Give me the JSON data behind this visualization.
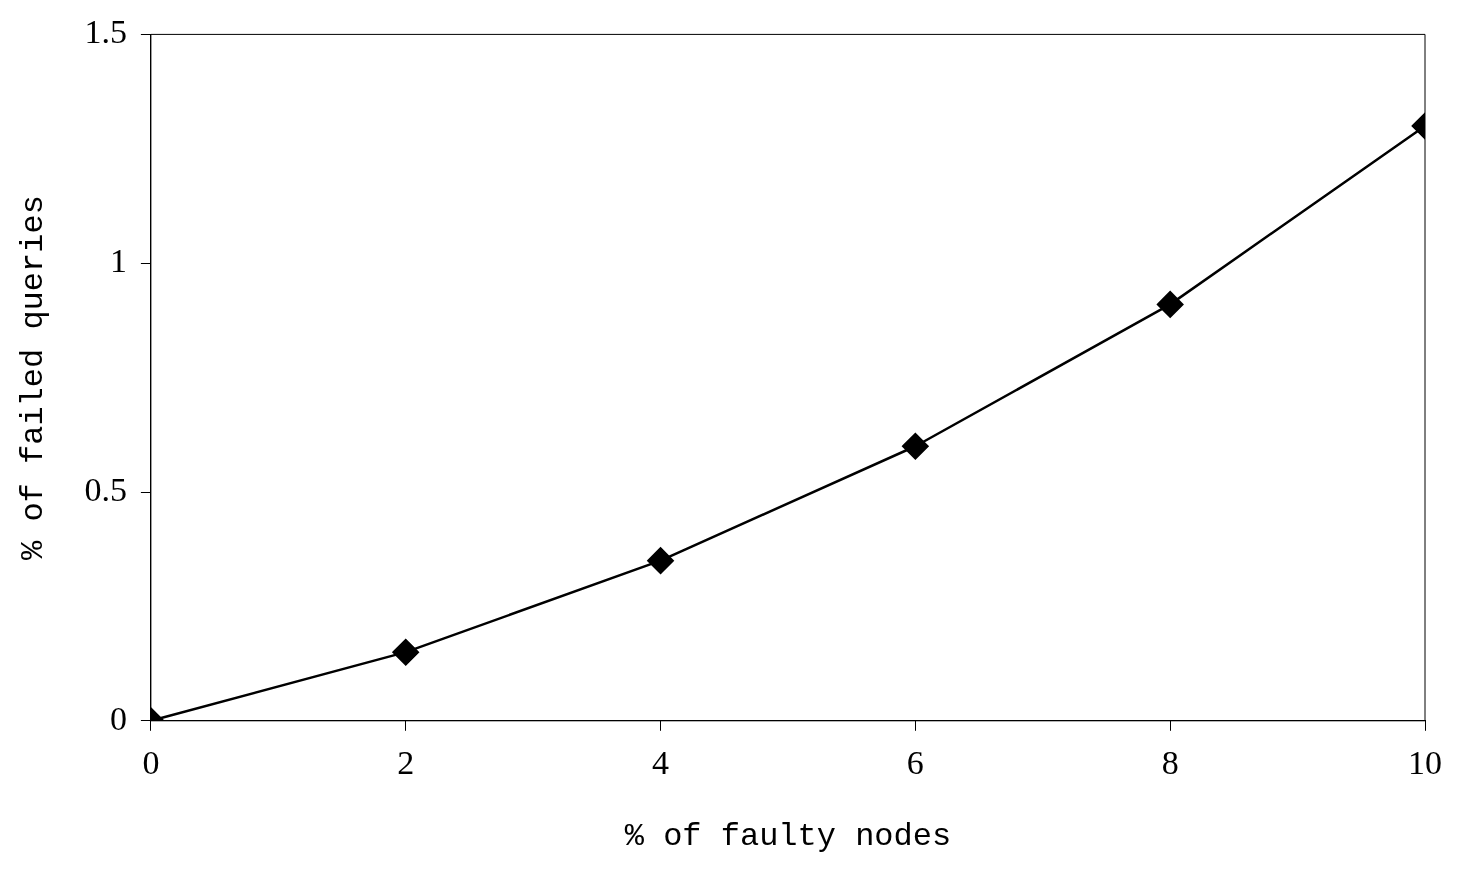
{
  "chart_data": {
    "type": "line",
    "xlabel": "% of faulty nodes",
    "ylabel": "% of failed queries",
    "x": [
      0,
      2,
      4,
      6,
      8,
      10
    ],
    "series": [
      {
        "color": "#000000",
        "values": [
          0,
          0.15,
          0.35,
          0.6,
          0.91,
          1.3
        ]
      }
    ],
    "xlim": [
      0,
      10
    ],
    "xticks": [
      0,
      2,
      4,
      6,
      8,
      10
    ],
    "ylim": [
      0,
      1.5
    ],
    "yticks": [
      0,
      0.5,
      1,
      1.5
    ],
    "grid": false,
    "legend": false,
    "marker": "diamond",
    "line_style": "solid"
  }
}
